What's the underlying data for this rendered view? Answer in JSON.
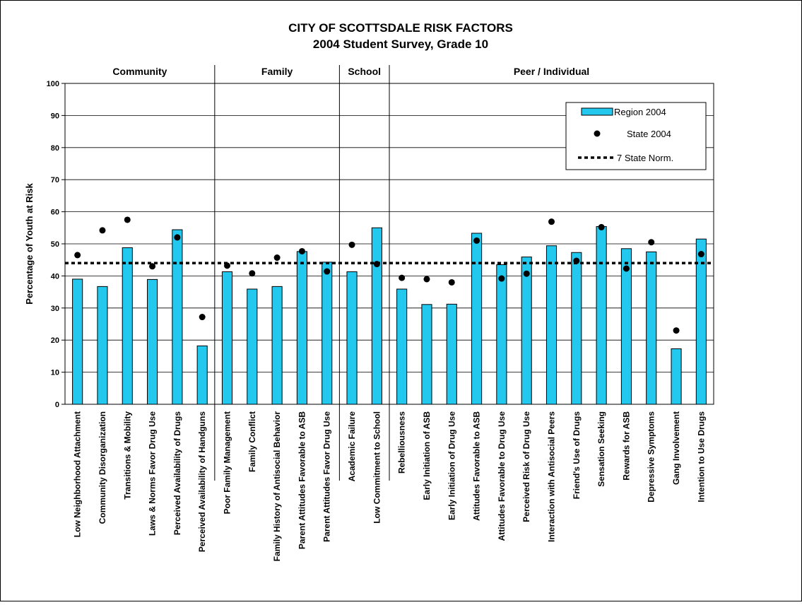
{
  "chart_data": {
    "type": "bar",
    "title": "CITY OF SCOTTSDALE RISK FACTORS",
    "subtitle": "2004 Student Survey, Grade 10",
    "y_label": "Percentage of Youth at Risk",
    "categories": [
      "Low Neighborhood Attachment",
      "Community Disorganization",
      "Transitions & Mobility",
      "Laws & Norms Favor Drug Use",
      "Perceived Availability of Drugs",
      "Perceived Availability of Handguns",
      "Poor Family Management",
      "Family Conflict",
      "Family History of Antisocial Behavior",
      "Parent Attitudes Favorable to ASB",
      "Parent Attitudes Favor Drug Use",
      "Academic Failure",
      "Low Commitment to School",
      "Rebelliousness",
      "Early Initiation of ASB",
      "Early Initiation of Drug Use",
      "Attitudes Favorable to ASB",
      "Attitudes Favorable to Drug Use",
      "Perceived Risk of Drug Use",
      "Interaction with Antisocial Peers",
      "Friend's Use of Drugs",
      "Sensation Seeking",
      "Rewards for ASB",
      "Depressive Symptoms",
      "Gang Involvement",
      "Intention to Use Drugs"
    ],
    "groups": [
      {
        "name": "Community",
        "count": 6
      },
      {
        "name": "Family",
        "count": 5
      },
      {
        "name": "School",
        "count": 2
      },
      {
        "name": "Peer / Individual",
        "count": 13
      }
    ],
    "series": [
      {
        "name": "Region 2004",
        "color": "#22c8ee",
        "values": [
          39,
          36.7,
          48.8,
          38.9,
          54.4,
          18.2,
          41.3,
          35.9,
          36.7,
          47.6,
          44.3,
          41.3,
          55,
          35.9,
          31.1,
          31.2,
          53.3,
          43.5,
          45.9,
          49.4,
          47.3,
          55.4,
          48.5,
          47.5,
          17.3,
          51.5
        ]
      },
      {
        "name": "State 2004",
        "color": "#000000",
        "values": [
          46.5,
          54.2,
          57.5,
          43,
          52,
          27.2,
          43.2,
          40.8,
          45.7,
          47.7,
          41.4,
          49.7,
          43.7,
          39.4,
          39,
          38,
          51,
          39.2,
          40.7,
          56.9,
          44.7,
          55.2,
          42.3,
          50.5,
          23,
          46.8
        ]
      },
      {
        "name": "7 State Norm.",
        "color": "#000000",
        "value": 44
      }
    ],
    "ylim": [
      0,
      100
    ],
    "yticks": [
      0,
      10,
      20,
      30,
      40,
      50,
      60,
      70,
      80,
      90,
      100
    ],
    "grid": true
  }
}
